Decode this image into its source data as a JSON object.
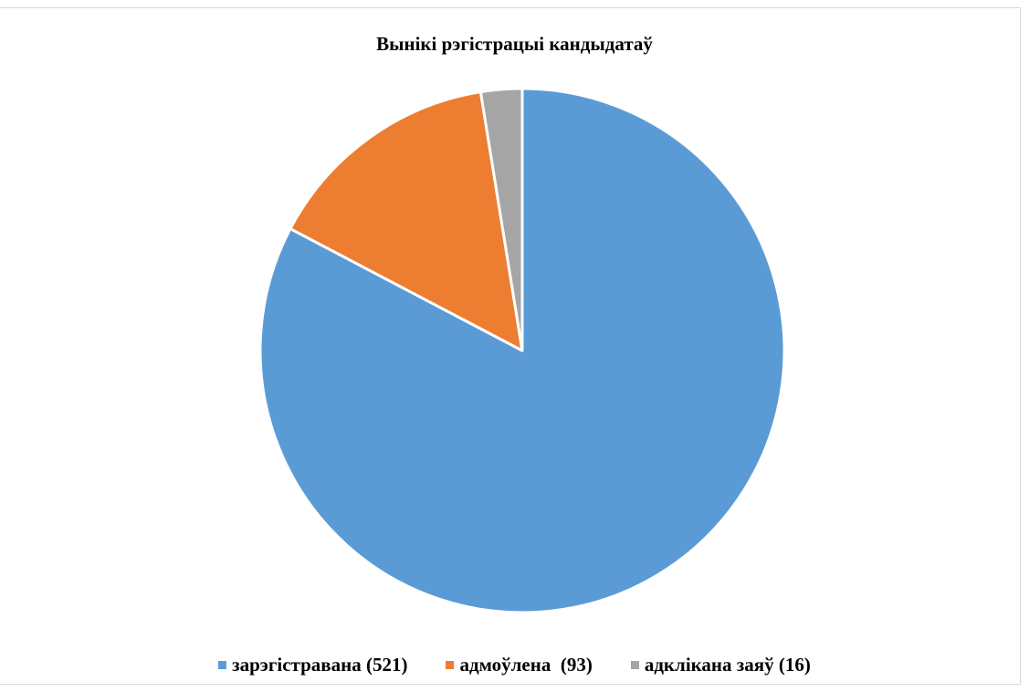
{
  "colors": {
    "background": "#ffffff",
    "slice_border": "#ffffff",
    "frame_border": "#d9d9d9"
  },
  "chart_data": {
    "type": "pie",
    "title": "Вынікі рэгістрацыі кандыдатаў",
    "slices": [
      {
        "label": "зарэгістравана (521)",
        "value": 521,
        "color": "#5b9bd5"
      },
      {
        "label": "адмоўлена  (93)",
        "value": 93,
        "color": "#ed7d31"
      },
      {
        "label": "адклікана заяў (16)",
        "value": 16,
        "color": "#a5a5a5"
      }
    ],
    "start_angle": "12 o'clock",
    "direction": "clockwise",
    "legend_position": "bottom"
  }
}
